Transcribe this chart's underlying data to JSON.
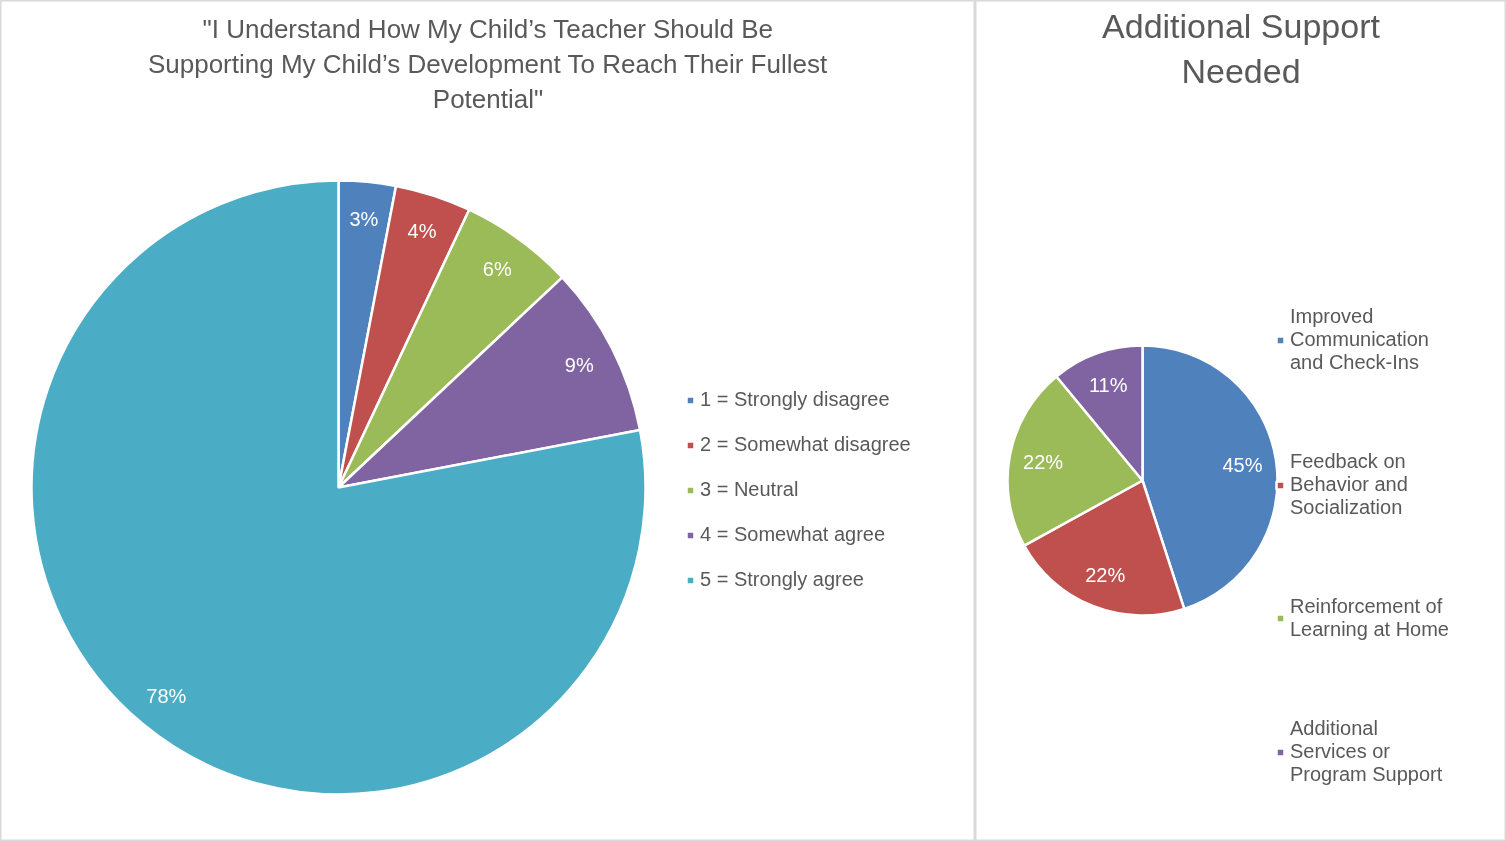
{
  "chart_data": [
    {
      "type": "pie",
      "title": "\"I Understand How My Child’s Teacher Should Be Supporting My Child’s Development To Reach Their Fullest Potential\"",
      "categories": [
        "1 = Strongly disagree",
        "2 = Somewhat disagree",
        "3 = Neutral",
        "4 = Somewhat agree",
        "5 = Strongly agree"
      ],
      "values": [
        3,
        4,
        6,
        9,
        78
      ],
      "colors": [
        "#4f81bd",
        "#c0504d",
        "#9bbb59",
        "#8064a2",
        "#4bacc6"
      ],
      "value_labels": [
        "3%",
        "4%",
        "6%",
        "9%",
        "78%"
      ],
      "legend": "right"
    },
    {
      "type": "pie",
      "title": "Additional Support Needed",
      "categories": [
        "Improved Communication and Check-Ins",
        "Feedback on Behavior and Socialization",
        "Reinforcement of Learning at Home",
        "Additional Services or Program Support"
      ],
      "values": [
        45,
        22,
        22,
        11
      ],
      "colors": [
        "#4f81bd",
        "#c0504d",
        "#9bbb59",
        "#8064a2"
      ],
      "value_labels": [
        "45%",
        "22%",
        "22%",
        "11%"
      ],
      "legend": "right"
    }
  ]
}
